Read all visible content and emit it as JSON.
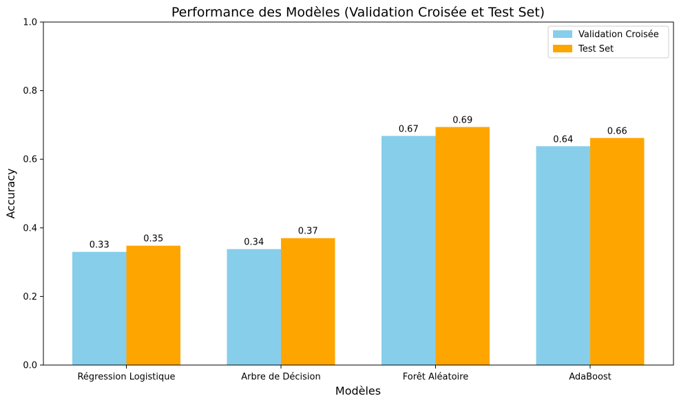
{
  "chart_data": {
    "type": "bar",
    "title": "Performance des Modèles (Validation Croisée et Test Set)",
    "xlabel": "Modèles",
    "ylabel": "Accuracy",
    "ylim": [
      0,
      1.0
    ],
    "yticks": [
      "0.0",
      "0.2",
      "0.4",
      "0.6",
      "0.8",
      "1.0"
    ],
    "categories": [
      "Régression Logistique",
      "Arbre de Décision",
      "Forêt Aléatoire",
      "AdaBoost"
    ],
    "series": [
      {
        "name": "Validation Croisée",
        "color": "#87CEEB",
        "values": [
          0.33,
          0.338,
          0.668,
          0.638
        ],
        "labels": [
          "0.33",
          "0.34",
          "0.67",
          "0.64"
        ]
      },
      {
        "name": "Test Set",
        "color": "#FFA500",
        "values": [
          0.348,
          0.37,
          0.694,
          0.662
        ],
        "labels": [
          "0.35",
          "0.37",
          "0.69",
          "0.66"
        ]
      }
    ],
    "grid": false,
    "legend_position": "top-right"
  }
}
